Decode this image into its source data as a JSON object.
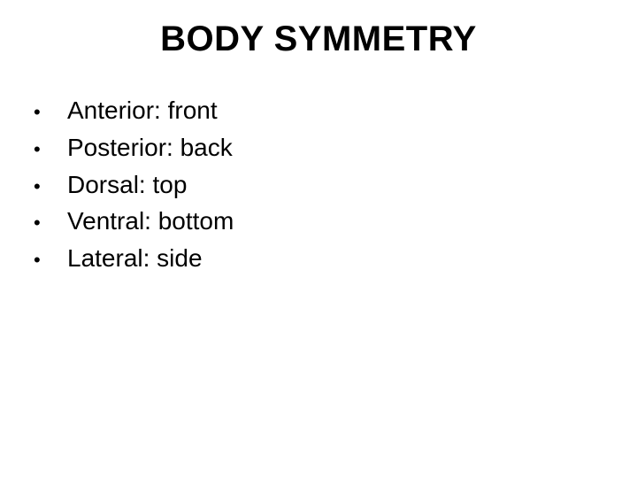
{
  "title": "BODY SYMMETRY",
  "bullets": [
    "Anterior: front",
    "Posterior: back",
    "Dorsal: top",
    "Ventral: bottom",
    "Lateral: side"
  ],
  "colors": {
    "background": "#ffffff",
    "text": "#000000"
  },
  "typography": {
    "title_fontsize": 40,
    "title_weight": "bold",
    "bullet_fontsize": 28,
    "font_family": "Arial"
  }
}
